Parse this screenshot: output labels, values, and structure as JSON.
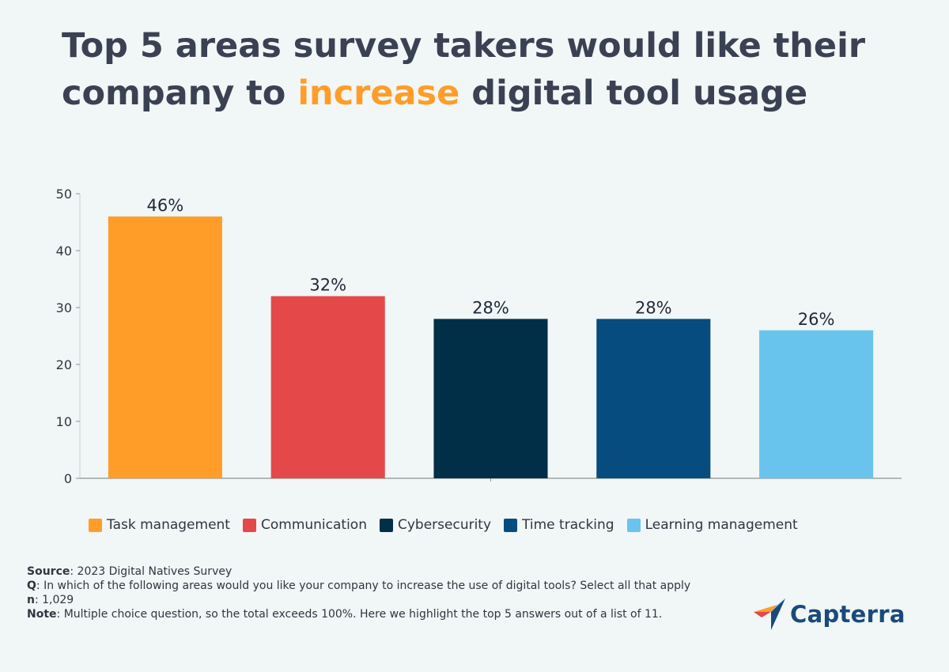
{
  "header": {
    "title_part1": "Top 5 areas survey takers would like their company to ",
    "title_highlight": "increase",
    "title_part2": " digital tool usage"
  },
  "chart_data": {
    "type": "bar",
    "categories": [
      "Task management",
      "Communication",
      "Cybersecurity",
      "Time tracking",
      "Learning management"
    ],
    "values": [
      46,
      32,
      28,
      28,
      26
    ],
    "data_labels": [
      "46%",
      "32%",
      "28%",
      "28%",
      "26%"
    ],
    "colors": [
      "#ff9d28",
      "#e54848",
      "#022f48",
      "#064c7e",
      "#68c4ed"
    ],
    "yticks": [
      0,
      10,
      20,
      30,
      40,
      50
    ],
    "ylim": [
      0,
      50
    ],
    "title": "Top 5 areas survey takers would like their company to increase digital tool usage",
    "xlabel": "",
    "ylabel": "",
    "legend_position": "bottom"
  },
  "footer": {
    "source_label": "Source",
    "source_text": ": 2023 Digital Natives Survey",
    "q_label": "Q",
    "q_text": ": In which of the following areas would you like your company to increase the use of digital tools? Select all that apply",
    "n_label": "n",
    "n_text": ": 1,029",
    "note_label": "Note",
    "note_text": ": Multiple choice question, so the total exceeds 100%. Here we highlight the top 5 answers out of a list of 11."
  },
  "brand": {
    "name": "Capterra",
    "accent": "#ff9d28",
    "primary": "#194a7a",
    "icon": "capterra-arrow-icon"
  }
}
